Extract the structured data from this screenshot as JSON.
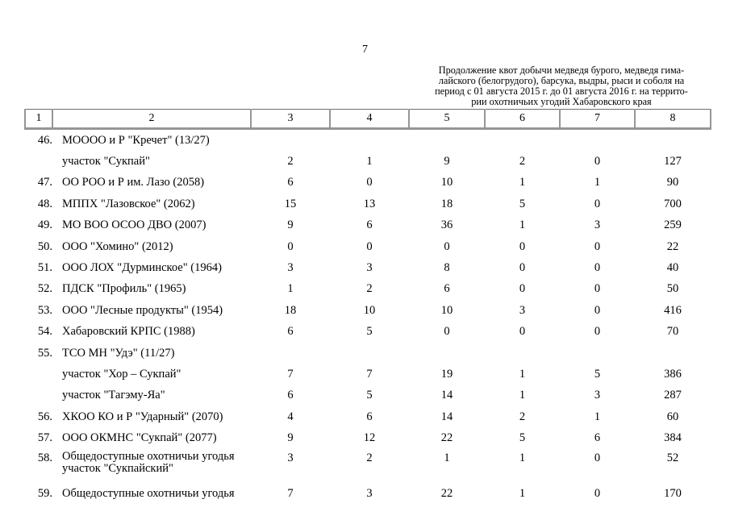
{
  "page": {
    "number": "7"
  },
  "note": {
    "lines": [
      "Продолжение квот добычи медведя бурого, медведя гима-",
      "лайского (белогрудого), барсука, выдры, рыси и соболя на",
      "период с 01 августа 2015 г. до 01 августа 2016 г. на террито-",
      "рии охотничьих угодий Хабаровского края"
    ]
  },
  "table": {
    "header": [
      "1",
      "2",
      "3",
      "4",
      "5",
      "6",
      "7",
      "8"
    ],
    "rows": [
      {
        "num": "46.",
        "name": "МОООО и Р \"Кречет\" (13/27)",
        "values": [
          "",
          "",
          "",
          "",
          "",
          ""
        ]
      },
      {
        "num": "",
        "name": "участок \"Сукпай\"",
        "values": [
          "2",
          "1",
          "9",
          "2",
          "0",
          "127"
        ]
      },
      {
        "num": "47.",
        "name": "ОО РОО и Р им. Лазо (2058)",
        "values": [
          "6",
          "0",
          "10",
          "1",
          "1",
          "90"
        ]
      },
      {
        "num": "48.",
        "name": "МППХ \"Лазовское\" (2062)",
        "values": [
          "15",
          "13",
          "18",
          "5",
          "0",
          "700"
        ]
      },
      {
        "num": "49.",
        "name": "МО ВОО ОСОО ДВО (2007)",
        "values": [
          "9",
          "6",
          "36",
          "1",
          "3",
          "259"
        ]
      },
      {
        "num": "50.",
        "name": "ООО \"Хомино\" (2012)",
        "values": [
          "0",
          "0",
          "0",
          "0",
          "0",
          "22"
        ]
      },
      {
        "num": "51.",
        "name": "ООО ЛОХ \"Дурминское\" (1964)",
        "values": [
          "3",
          "3",
          "8",
          "0",
          "0",
          "40"
        ]
      },
      {
        "num": "52.",
        "name": "ПДСК \"Профиль\" (1965)",
        "values": [
          "1",
          "2",
          "6",
          "0",
          "0",
          "50"
        ]
      },
      {
        "num": "53.",
        "name": "ООО \"Лесные продукты\" (1954)",
        "values": [
          "18",
          "10",
          "10",
          "3",
          "0",
          "416"
        ]
      },
      {
        "num": "54.",
        "name": "Хабаровский КРПС (1988)",
        "values": [
          "6",
          "5",
          "0",
          "0",
          "0",
          "70"
        ]
      },
      {
        "num": "55.",
        "name": "ТСО МН \"Удэ\" (11/27)",
        "values": [
          "",
          "",
          "",
          "",
          "",
          ""
        ]
      },
      {
        "num": "",
        "name": "участок \"Хор – Сукпай\"",
        "values": [
          "7",
          "7",
          "19",
          "1",
          "5",
          "386"
        ]
      },
      {
        "num": "",
        "name": "участок \"Тагэму-Яа\"",
        "values": [
          "6",
          "5",
          "14",
          "1",
          "3",
          "287"
        ]
      },
      {
        "num": "56.",
        "name": "ХКОО КО и Р \"Ударный\" (2070)",
        "values": [
          "4",
          "6",
          "14",
          "2",
          "1",
          "60"
        ]
      },
      {
        "num": "57.",
        "name": "ООО ОКМНС \"Сукпай\" (2077)",
        "values": [
          "9",
          "12",
          "22",
          "5",
          "6",
          "384"
        ]
      },
      {
        "num": "58.",
        "name": "Общедоступные охотничьи угодья",
        "name2": "участок \"Сукпайский\"",
        "values": [
          "3",
          "2",
          "1",
          "1",
          "0",
          "52"
        ]
      },
      {
        "num": "59.",
        "name": "Общедоступные охотничьи угодья",
        "values": [
          "7",
          "3",
          "22",
          "1",
          "0",
          "170"
        ]
      }
    ]
  }
}
